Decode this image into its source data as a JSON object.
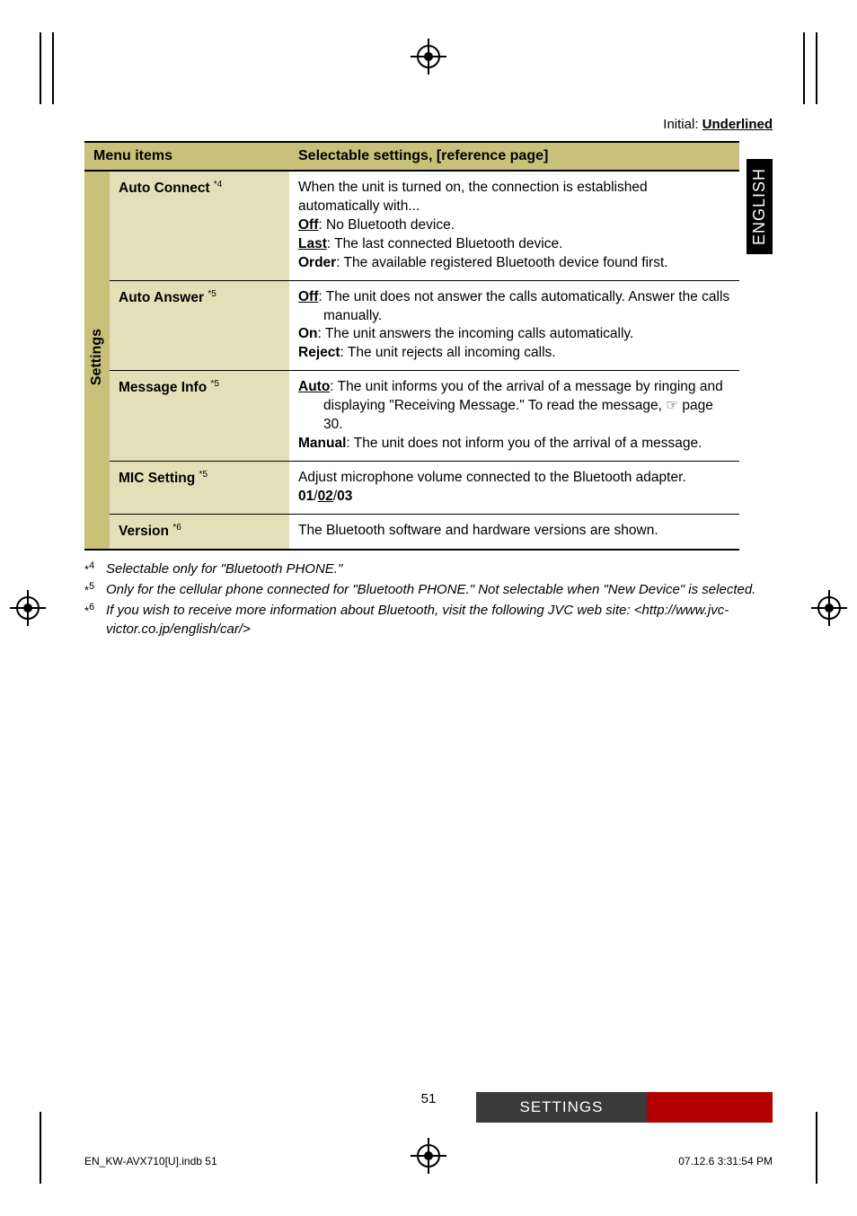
{
  "header": {
    "initial_label": "Initial: ",
    "initial_value": "Underlined",
    "language_tab": "ENGLISH"
  },
  "table": {
    "col1": "Menu items",
    "col2": "Selectable settings, [reference page]",
    "side_label": "Settings",
    "rows": [
      {
        "menu": "Auto Connect ",
        "sup": "*4",
        "body": "<span>When the unit is turned on, the connection is established automatically with...</span><br><span class='b u'>Off</span>: No Bluetooth device.<br><span class='b u'>Last</span>: The last connected Bluetooth device.<br><span class='b'>Order</span>: The available registered Bluetooth device found first."
      },
      {
        "menu": "Auto Answer ",
        "sup": "*5",
        "body": "<span class='b u'>Off</span>: The unit does not answer the calls automatically. Answer the calls <span class='indent'>manually.</span><span class='b'>On</span>: The unit answers the incoming calls automatically.<br><span class='b'>Reject</span>: The unit rejects all incoming calls."
      },
      {
        "menu": "Message Info ",
        "sup": "*5",
        "body": "<span class='b u'>Auto</span>: The unit informs you of the arrival of a message by ringing and <span class='indent'>displaying \"Receiving Message.\" To read the message, ☞ page 30.</span><span class='b'>Manual</span>: The unit does not inform you of the arrival of a message."
      },
      {
        "menu": "MIC Setting ",
        "sup": "*5",
        "body": "Adjust microphone volume connected to the Bluetooth adapter.<br><span class='b'>01</span>/<span class='b u'>02</span>/<span class='b'>03</span>"
      },
      {
        "menu": "Version ",
        "sup": "*6",
        "body": "The Bluetooth software and hardware versions are shown."
      }
    ]
  },
  "footnotes": {
    "f4": "Selectable only for \"Bluetooth PHONE.\"",
    "f5": "Only for the cellular phone connected for \"Bluetooth PHONE.\" Not selectable when \"New Device\" is selected.",
    "f6": "If you wish to receive more information about Bluetooth, visit the following JVC web site: <http://www.jvc-victor.co.jp/english/car/>"
  },
  "page_number": "51",
  "section_label": "SETTINGS",
  "footer": {
    "left": "EN_KW-AVX710[U].indb   51",
    "right": "07.12.6   3:31:54 PM"
  }
}
